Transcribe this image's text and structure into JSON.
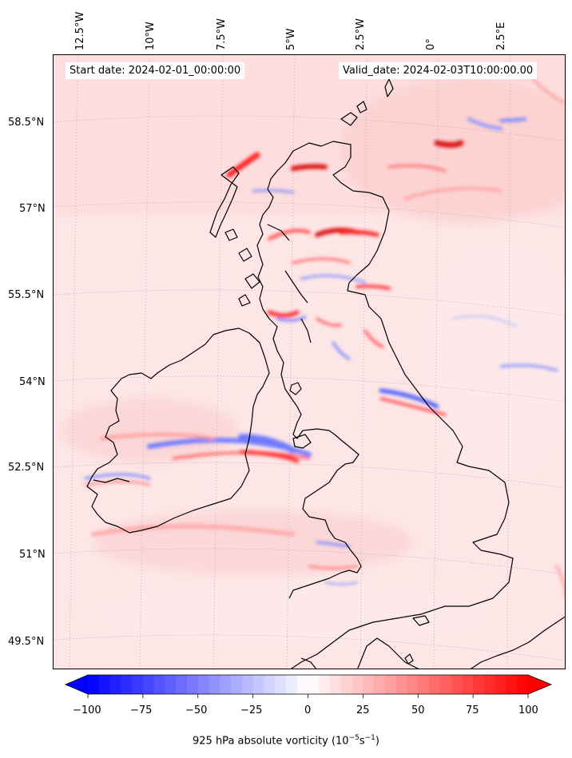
{
  "info": {
    "start_date": "Start date: 2024-02-01_00:00:00",
    "valid_date": "Valid_date: 2024-02-03T10:00:00.00"
  },
  "lon_labels": [
    "12.5°W",
    "10°W",
    "7.5°W",
    "5°W",
    "2.5°W",
    "0°",
    "2.5°E"
  ],
  "lat_labels": [
    "58.5°N",
    "57°N",
    "55.5°N",
    "54°N",
    "52.5°N",
    "51°N",
    "49.5°N"
  ],
  "colorbar": {
    "min": -100,
    "max": 100,
    "ticks": [
      "−100",
      "−75",
      "−50",
      "−25",
      "0",
      "25",
      "50",
      "75",
      "100"
    ],
    "label_prefix": "925 hPa absolute vorticity (10",
    "label_exp1": "−5",
    "label_mid": "s",
    "label_exp2": "−1",
    "label_suffix": ")",
    "colors": {
      "low": "#0000ff",
      "mid": "#ffffff",
      "high": "#ff0000"
    }
  },
  "colors": {
    "coast": "#000000",
    "background_field": "#fde2e2",
    "gridline": "#aaaaaa"
  }
}
